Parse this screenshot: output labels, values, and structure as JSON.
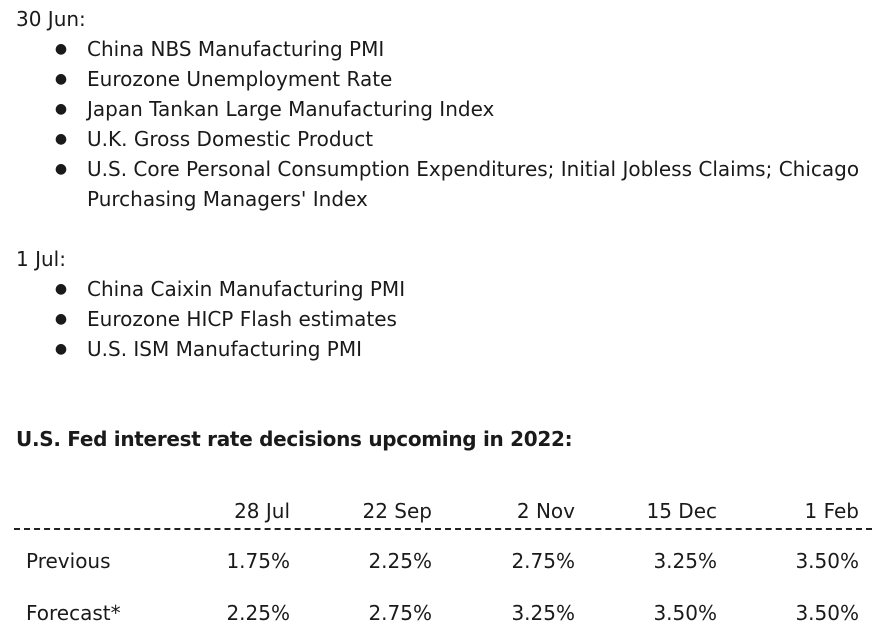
{
  "schedule": [
    {
      "date": "30 Jun:",
      "events": [
        "China NBS Manufacturing PMI",
        "Eurozone Unemployment Rate",
        "Japan Tankan Large Manufacturing Index",
        "U.K. Gross Domestic Product",
        "U.S. Core Personal Consumption Expenditures; Initial Jobless Claims; Chicago Purchasing Managers' Index"
      ]
    },
    {
      "date": "1 Jul:",
      "events": [
        "China Caixin Manufacturing PMI",
        "Eurozone HICP Flash estimates",
        "U.S. ISM Manufacturing PMI"
      ]
    }
  ],
  "fed": {
    "heading": "U.S. Fed interest rate decisions upcoming in 2022:",
    "columns": [
      "28 Jul",
      "22 Sep",
      "2 Nov",
      "15 Dec",
      "1 Feb"
    ],
    "rows": [
      {
        "label": "Previous",
        "values": [
          "1.75%",
          "2.25%",
          "2.75%",
          "3.25%",
          "3.50%"
        ]
      },
      {
        "label": "Forecast*",
        "values": [
          "2.25%",
          "2.75%",
          "3.25%",
          "3.50%",
          "3.50%"
        ]
      }
    ]
  }
}
